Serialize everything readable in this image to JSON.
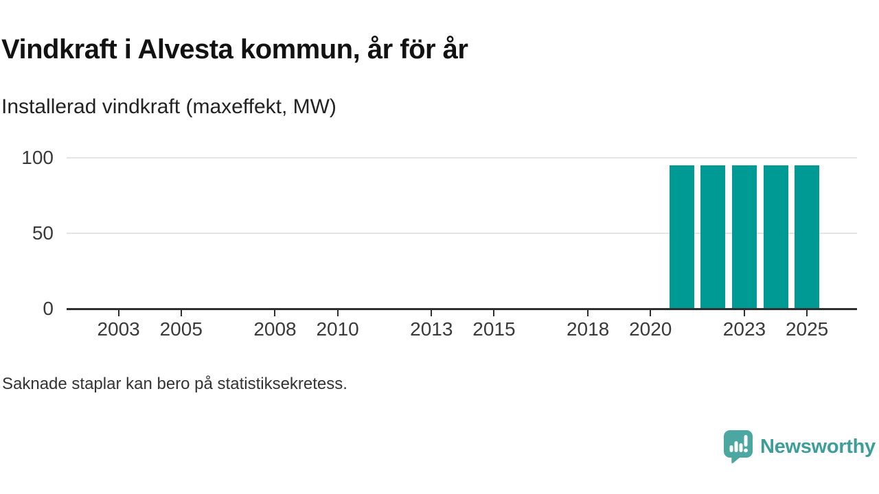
{
  "header": {
    "title": "Vindkraft i Alvesta kommun, år för år",
    "subtitle": "Installerad vindkraft (maxeffekt, MW)"
  },
  "chart_data": {
    "type": "bar",
    "title": "Vindkraft i Alvesta kommun, år för år",
    "subtitle": "Installerad vindkraft (maxeffekt, MW)",
    "unit": "MW",
    "x": [
      2021,
      2022,
      2023,
      2024,
      2025
    ],
    "values": [
      95,
      95,
      95,
      95,
      95
    ],
    "xlim": [
      2001.34,
      2026.6
    ],
    "ylim": [
      0,
      100
    ],
    "x_ticks": [
      2003,
      2005,
      2008,
      2010,
      2013,
      2015,
      2018,
      2020,
      2023,
      2025
    ],
    "y_ticks": [
      0,
      50,
      100
    ],
    "grid": "horizontal-only",
    "legend": "none",
    "bar_color": "#009a94",
    "axis_color": "#2f2f2f",
    "grid_color": "#e4e4e4",
    "tick_label_color": "#3a3a3a"
  },
  "footer": {
    "note": "Saknade staplar kan bero på statistiksekretess."
  },
  "branding": {
    "wordmark": "Newsworthy",
    "icon": "newsworthy-speech-bubble-bar-chart-icon",
    "bubble_color": "#4ba7a0",
    "wordmark_color": "#3d9e99"
  }
}
